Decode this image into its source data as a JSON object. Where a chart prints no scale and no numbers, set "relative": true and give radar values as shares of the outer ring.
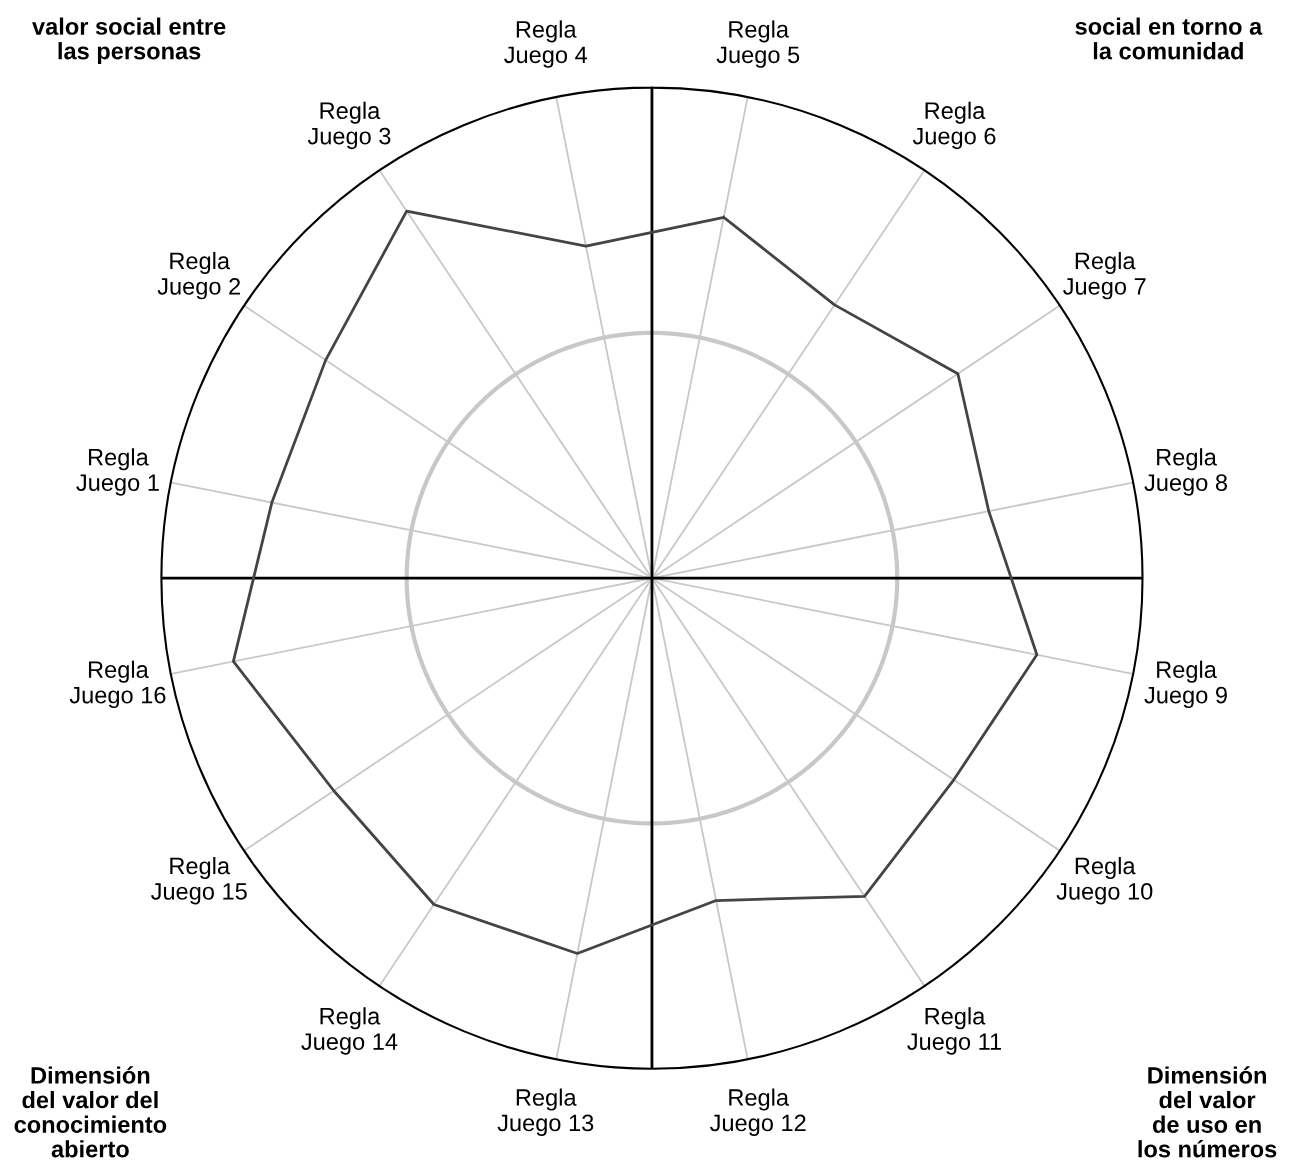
{
  "chart_data": {
    "type": "radar",
    "relative": true,
    "grid": true,
    "categories": [
      "Regla\nJuego 5",
      "Regla\nJuego 6",
      "Regla\nJuego 7",
      "Regla\nJuego 8",
      "Regla\nJuego 9",
      "Regla\nJuego 10",
      "Regla\nJuego 11",
      "Regla\nJuego 12",
      "Regla\nJuego 13",
      "Regla\nJuego 14",
      "Regla\nJuego 15",
      "Regla\nJuego 16",
      "Regla\nJuego 1",
      "Regla\nJuego 2",
      "Regla\nJuego 3",
      "Regla\nJuego 4"
    ],
    "series": [
      {
        "color": "#444444",
        "values": [
          0.75,
          0.67,
          0.75,
          0.7,
          0.8,
          0.74,
          0.78,
          0.67,
          0.78,
          0.8,
          0.78,
          0.87,
          0.79,
          0.8,
          0.9,
          0.69
        ]
      }
    ],
    "annotations": [
      "valor social entre\nlas personas",
      "social en torno a\nla comunidad",
      "Dimensión\ndel valor del\nconocimiento\nabierto",
      "Dimensión\ndel valor\nde uso en\nlos números"
    ]
  }
}
